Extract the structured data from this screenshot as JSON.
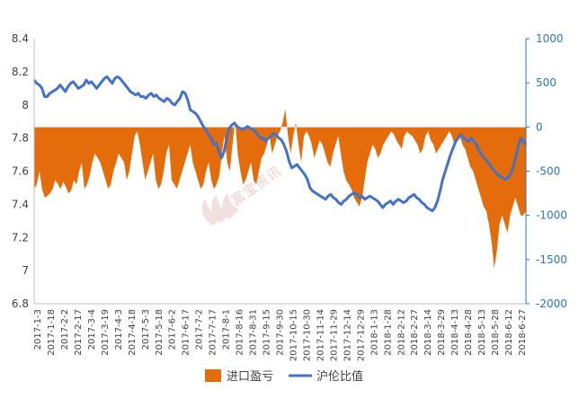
{
  "chart_data": {
    "type": "area+line",
    "x_labels": [
      "2017-1-3",
      "2017-1-18",
      "2017-2-2",
      "2017-2-17",
      "2017-3-4",
      "2017-3-19",
      "2017-4-3",
      "2017-4-18",
      "2017-5-3",
      "2017-5-18",
      "2017-6-2",
      "2017-6-17",
      "2017-7-2",
      "2017-7-17",
      "2017-8-1",
      "2017-8-16",
      "2017-8-31",
      "2017-9-15",
      "2017-9-30",
      "2017-10-15",
      "2017-10-30",
      "2017-11-14",
      "2017-11-29",
      "2017-12-14",
      "2017-12-29",
      "2018-1-13",
      "2018-1-28",
      "2018-2-12",
      "2018-2-27",
      "2018-3-14",
      "2018-3-29",
      "2018-4-13",
      "2018-4-28",
      "2018-5-13",
      "2018-5-28",
      "2018-6-12",
      "2018-6-27"
    ],
    "left_axis": {
      "ticks": [
        "8.4",
        "8.2",
        "8",
        "7.8",
        "7.6",
        "7.4",
        "7.2",
        "7",
        "6.8"
      ],
      "min": 6.8,
      "max": 8.4
    },
    "right_axis": {
      "ticks": [
        "1000",
        "500",
        "0",
        "-500",
        "-1000",
        "-1500",
        "-2000"
      ],
      "min": -2000,
      "max": 1000
    },
    "series": [
      {
        "name": "进口盈亏",
        "axis": "right",
        "kind": "area",
        "color": "#E46C0A",
        "values": [
          -700,
          -650,
          -500,
          -700,
          -800,
          -780,
          -750,
          -700,
          -600,
          -650,
          -700,
          -620,
          -680,
          -750,
          -720,
          -600,
          -650,
          -500,
          -400,
          -700,
          -650,
          -550,
          -400,
          -300,
          -350,
          -400,
          -500,
          -600,
          -700,
          -650,
          -500,
          -400,
          -300,
          -350,
          -400,
          -600,
          -500,
          -300,
          -100,
          -50,
          -200,
          -400,
          -600,
          -500,
          -400,
          -300,
          -600,
          -700,
          -650,
          -500,
          -300,
          -200,
          -600,
          -650,
          -700,
          -600,
          -500,
          -400,
          -300,
          -200,
          -400,
          -500,
          -600,
          -700,
          -650,
          -500,
          -400,
          -600,
          -700,
          -650,
          -550,
          -300,
          -100,
          -400,
          -500,
          -200,
          80,
          -300,
          -500,
          -650,
          -600,
          -500,
          -400,
          -600,
          -650,
          -500,
          -350,
          -300,
          -200,
          -100,
          -300,
          -200,
          -100,
          -50,
          50,
          200,
          -100,
          -300,
          -100,
          50,
          -200,
          -400,
          -100,
          -50,
          -100,
          -200,
          -350,
          -250,
          -150,
          -200,
          -300,
          -400,
          -450,
          -300,
          -200,
          -100,
          -300,
          -500,
          -600,
          -650,
          -700,
          -800,
          -850,
          -900,
          -800,
          -600,
          -400,
          -300,
          -200,
          -250,
          -350,
          -300,
          -200,
          -150,
          -100,
          -50,
          -80,
          -150,
          -200,
          -250,
          -100,
          -50,
          -80,
          -100,
          -150,
          -200,
          -300,
          -250,
          -100,
          -50,
          -150,
          -200,
          -300,
          -250,
          -200,
          -150,
          -100,
          -50,
          -100,
          -200,
          -150,
          -100,
          -200,
          -250,
          -350,
          -450,
          -500,
          -600,
          -700,
          -800,
          -900,
          -950,
          -1100,
          -1300,
          -1600,
          -1400,
          -1100,
          -1000,
          -1100,
          -1200,
          -1000,
          -900,
          -800,
          -900,
          -1000,
          -1000,
          -950
        ]
      },
      {
        "name": "沪伦比值",
        "axis": "left",
        "kind": "line",
        "color": "#4472C4",
        "values": [
          8.15,
          8.13,
          8.12,
          8.1,
          8.05,
          8.05,
          8.07,
          8.08,
          8.09,
          8.1,
          8.12,
          8.1,
          8.08,
          8.11,
          8.13,
          8.14,
          8.12,
          8.1,
          8.11,
          8.12,
          8.15,
          8.13,
          8.14,
          8.12,
          8.1,
          8.12,
          8.14,
          8.16,
          8.17,
          8.15,
          8.13,
          8.16,
          8.17,
          8.16,
          8.14,
          8.12,
          8.1,
          8.08,
          8.07,
          8.06,
          8.07,
          8.05,
          8.05,
          8.04,
          8.06,
          8.07,
          8.05,
          8.06,
          8.04,
          8.03,
          8.02,
          8.04,
          8.03,
          8.01,
          8.0,
          8.02,
          8.04,
          8.08,
          8.07,
          8.03,
          7.97,
          7.96,
          7.95,
          7.93,
          7.9,
          7.87,
          7.85,
          7.82,
          7.8,
          7.76,
          7.77,
          7.72,
          7.68,
          7.72,
          7.8,
          7.86,
          7.88,
          7.89,
          7.87,
          7.86,
          7.85,
          7.86,
          7.87,
          7.86,
          7.85,
          7.84,
          7.82,
          7.8,
          7.8,
          7.78,
          7.8,
          7.81,
          7.83,
          7.82,
          7.8,
          7.79,
          7.76,
          7.72,
          7.66,
          7.62,
          7.63,
          7.64,
          7.62,
          7.6,
          7.58,
          7.55,
          7.5,
          7.48,
          7.47,
          7.46,
          7.45,
          7.44,
          7.43,
          7.45,
          7.46,
          7.44,
          7.43,
          7.41,
          7.4,
          7.42,
          7.43,
          7.45,
          7.46,
          7.47,
          7.46,
          7.44,
          7.45,
          7.43,
          7.44,
          7.45,
          7.44,
          7.43,
          7.42,
          7.4,
          7.38,
          7.4,
          7.41,
          7.42,
          7.4,
          7.42,
          7.43,
          7.42,
          7.41,
          7.42,
          7.44,
          7.45,
          7.46,
          7.44,
          7.43,
          7.41,
          7.4,
          7.38,
          7.37,
          7.36,
          7.38,
          7.42,
          7.48,
          7.55,
          7.6,
          7.65,
          7.7,
          7.74,
          7.78,
          7.8,
          7.82,
          7.8,
          7.79,
          7.78,
          7.8,
          7.78,
          7.76,
          7.72,
          7.7,
          7.68,
          7.66,
          7.64,
          7.62,
          7.6,
          7.58,
          7.57,
          7.56,
          7.55,
          7.56,
          7.58,
          7.62,
          7.68,
          7.75,
          7.8,
          7.78,
          7.76
        ]
      }
    ],
    "legend_position": "bottom",
    "grid": false
  },
  "legend": {
    "item1_label": "进口盈亏",
    "item2_label": "沪伦比值"
  },
  "colors": {
    "area": "#E46C0A",
    "line": "#4472C4",
    "right_axis": "#2E75B6",
    "zero_line": "#D9D9D9",
    "axis_text": "#404040"
  },
  "watermark": {
    "text": "富宝资讯"
  }
}
